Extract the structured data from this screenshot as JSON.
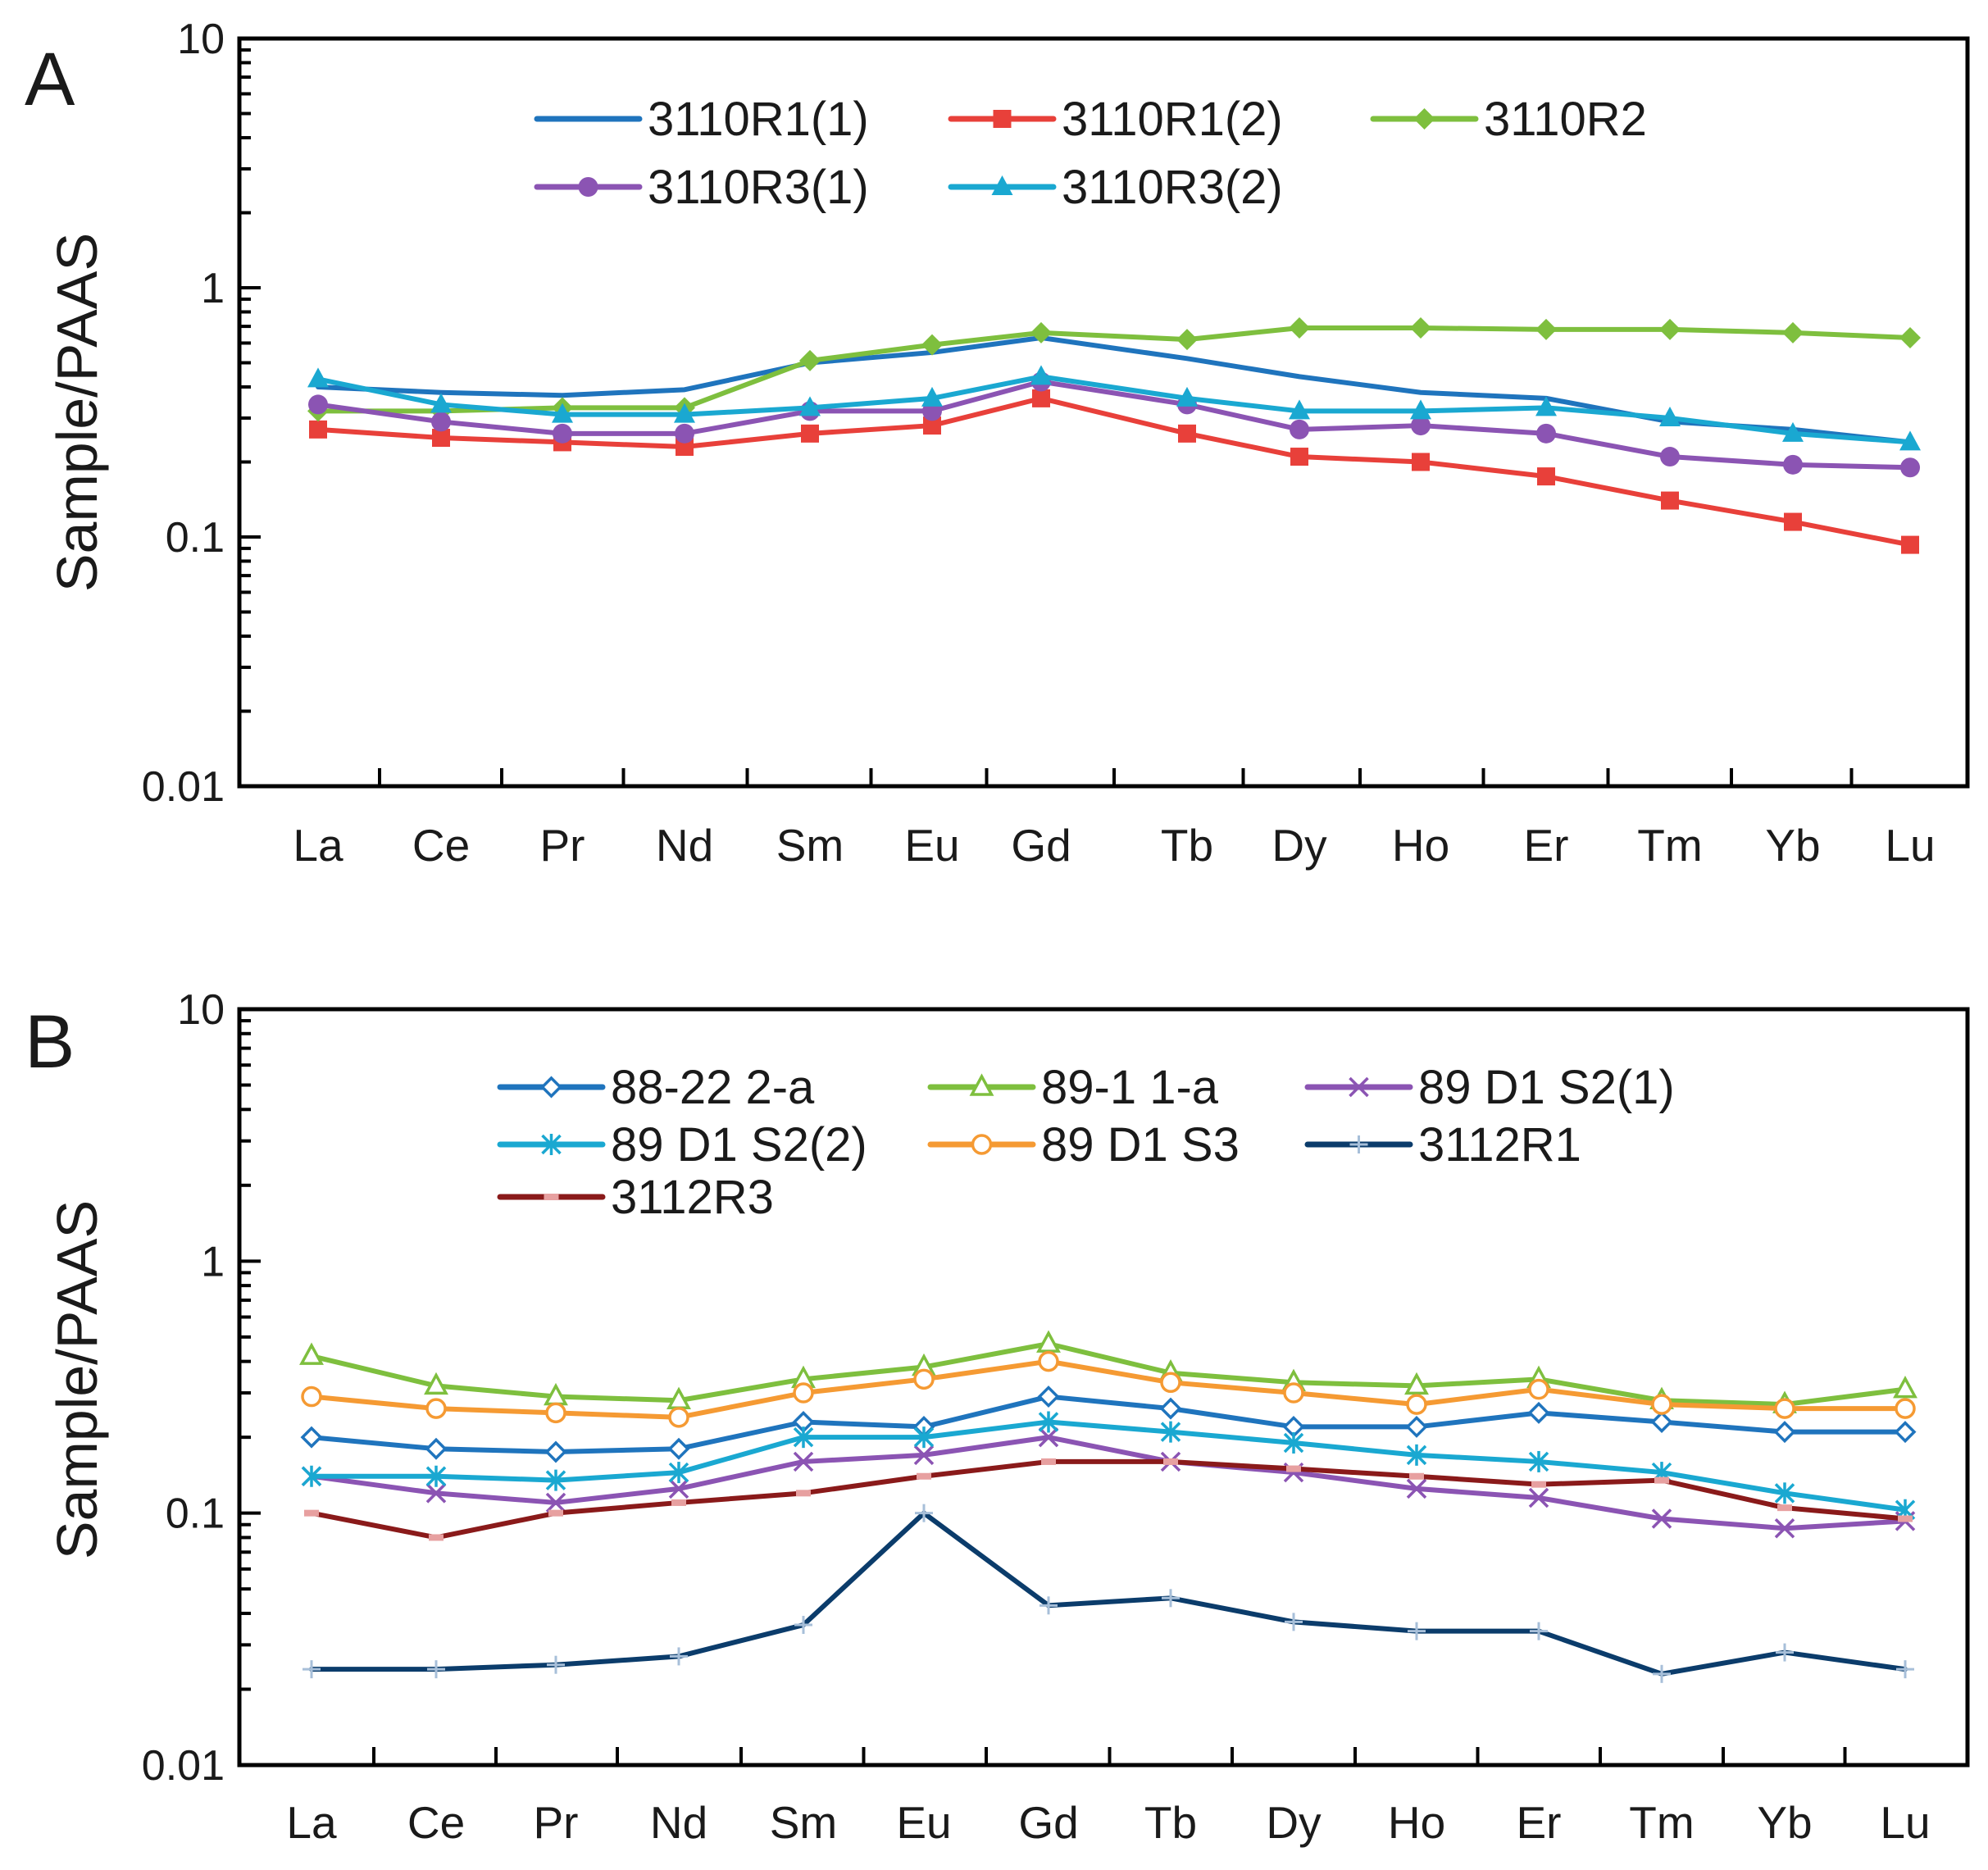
{
  "chart_data": [
    {
      "panel": "A",
      "type": "line",
      "ylabel": "Sample/PAAS",
      "yscale": "log",
      "ylim": [
        0.01,
        10
      ],
      "yticks": [
        "10",
        "1",
        "0.1",
        "0.01"
      ],
      "categories": [
        "La",
        "Ce",
        "Pr",
        "Nd",
        "Sm",
        "Eu",
        "Gd",
        "Tb",
        "Dy",
        "Ho",
        "Er",
        "Tm",
        "Yb",
        "Lu"
      ],
      "legend_position": "top",
      "series": [
        {
          "name": "3110R1(1)",
          "color": "#1f74bd",
          "marker": "none",
          "values": [
            0.4,
            0.38,
            0.37,
            0.39,
            0.5,
            0.55,
            0.63,
            0.52,
            0.44,
            0.38,
            0.36,
            0.29,
            0.27,
            0.24
          ]
        },
        {
          "name": "3110R1(2)",
          "color": "#e8403a",
          "marker": "square",
          "values": [
            0.27,
            0.25,
            0.24,
            0.23,
            0.26,
            0.28,
            0.36,
            0.26,
            0.21,
            0.2,
            0.175,
            0.14,
            0.115,
            0.093
          ]
        },
        {
          "name": "3110R2",
          "color": "#7ebf3e",
          "marker": "diamond",
          "values": [
            0.32,
            0.32,
            0.33,
            0.33,
            0.51,
            0.59,
            0.66,
            0.62,
            0.69,
            0.69,
            0.68,
            0.68,
            0.66,
            0.63
          ]
        },
        {
          "name": "3110R3(1)",
          "color": "#8b54b3",
          "marker": "circle",
          "values": [
            0.34,
            0.29,
            0.26,
            0.26,
            0.32,
            0.32,
            0.42,
            0.34,
            0.27,
            0.28,
            0.26,
            0.21,
            0.195,
            0.19
          ]
        },
        {
          "name": "3110R3(2)",
          "color": "#1aa8d1",
          "marker": "triangle",
          "values": [
            0.43,
            0.34,
            0.31,
            0.31,
            0.33,
            0.36,
            0.44,
            0.36,
            0.32,
            0.32,
            0.33,
            0.3,
            0.26,
            0.24
          ]
        }
      ]
    },
    {
      "panel": "B",
      "type": "line",
      "ylabel": "Sample/PAAS",
      "yscale": "log",
      "ylim": [
        0.01,
        10
      ],
      "yticks": [
        "10",
        "1",
        "0.1",
        "0.01"
      ],
      "categories": [
        "La",
        "Ce",
        "Pr",
        "Nd",
        "Sm",
        "Eu",
        "Gd",
        "Tb",
        "Dy",
        "Ho",
        "Er",
        "Tm",
        "Yb",
        "Lu"
      ],
      "legend_position": "top",
      "series": [
        {
          "name": "88-22 2-a",
          "color": "#1f74bd",
          "marker": "open-diamond",
          "values": [
            0.2,
            0.18,
            0.175,
            0.18,
            0.23,
            0.22,
            0.29,
            0.26,
            0.22,
            0.22,
            0.25,
            0.23,
            0.21,
            0.21
          ]
        },
        {
          "name": "89-1 1-a",
          "color": "#7ebf3e",
          "marker": "open-triangle",
          "values": [
            0.42,
            0.32,
            0.29,
            0.28,
            0.34,
            0.38,
            0.47,
            0.36,
            0.33,
            0.32,
            0.34,
            0.28,
            0.27,
            0.31
          ]
        },
        {
          "name": "89 D1 S2(1)",
          "color": "#8b54b3",
          "marker": "x",
          "values": [
            0.14,
            0.12,
            0.11,
            0.125,
            0.16,
            0.17,
            0.2,
            0.16,
            0.145,
            0.125,
            0.115,
            0.095,
            0.087,
            0.093
          ]
        },
        {
          "name": "89 D1 S2(2)",
          "color": "#1aa8d1",
          "marker": "star",
          "values": [
            0.14,
            0.14,
            0.135,
            0.145,
            0.2,
            0.2,
            0.23,
            0.21,
            0.19,
            0.17,
            0.16,
            0.145,
            0.12,
            0.103
          ]
        },
        {
          "name": "89 D1 S3",
          "color": "#f59a33",
          "marker": "open-circle",
          "values": [
            0.29,
            0.26,
            0.25,
            0.24,
            0.3,
            0.34,
            0.4,
            0.33,
            0.3,
            0.27,
            0.31,
            0.27,
            0.26,
            0.26
          ]
        },
        {
          "name": "3112R1",
          "color": "#0b3c6b",
          "marker": "plus",
          "values": [
            0.024,
            0.024,
            0.025,
            0.027,
            0.036,
            0.1,
            0.043,
            0.046,
            0.037,
            0.034,
            0.034,
            0.023,
            0.028,
            0.024
          ]
        },
        {
          "name": "3112R3",
          "color": "#8a1a1a",
          "marker": "dash",
          "values": [
            0.1,
            0.08,
            0.1,
            0.11,
            0.12,
            0.14,
            0.16,
            0.16,
            0.15,
            0.14,
            0.13,
            0.135,
            0.105,
            0.095
          ]
        }
      ]
    }
  ]
}
